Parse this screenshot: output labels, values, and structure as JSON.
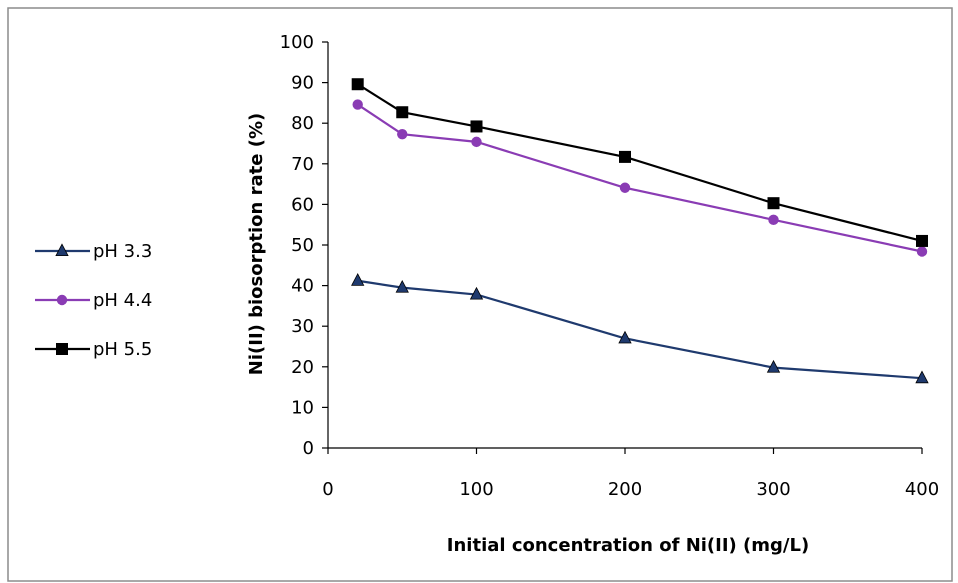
{
  "chart_data": {
    "type": "line",
    "title": "",
    "xlabel": "Initial concentration of Ni(II) (mg/L)",
    "ylabel": "Ni(II) biosorption rate (%)",
    "xlim": [
      0,
      400
    ],
    "ylim": [
      0,
      100
    ],
    "xticks": [
      0,
      100,
      200,
      300,
      400
    ],
    "yticks": [
      0,
      10,
      20,
      30,
      40,
      50,
      60,
      70,
      80,
      90,
      100
    ],
    "grid": false,
    "legend_position": "left",
    "x": [
      20,
      50,
      100,
      200,
      300,
      400
    ],
    "series": [
      {
        "name": "pH 3.3",
        "marker": "triangle",
        "color": "#1f3a6e",
        "values": [
          41.2,
          39.5,
          37.8,
          27.0,
          19.8,
          17.2
        ]
      },
      {
        "name": "pH 4.4",
        "marker": "circle",
        "color": "#8a3cb4",
        "values": [
          84.6,
          77.3,
          75.4,
          64.1,
          56.2,
          48.4
        ]
      },
      {
        "name": "pH 5.5",
        "marker": "square",
        "color": "#000000",
        "values": [
          89.6,
          82.7,
          79.2,
          71.7,
          60.3,
          51.0
        ]
      }
    ]
  }
}
